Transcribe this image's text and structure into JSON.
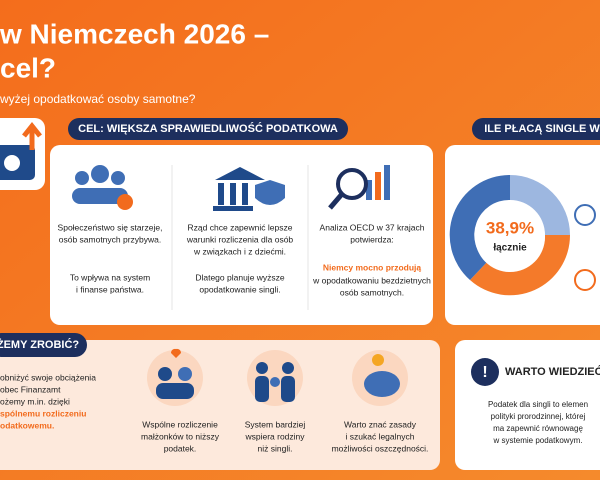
{
  "header": {
    "title_lines": [
      "w Niemczech 2026 –",
      "cel?"
    ],
    "subtitle": "wyżej opodatkować osoby samotne?"
  },
  "goal": {
    "banner": "CEL: WIĘKSZA SPRAWIEDLIWOŚĆ PODATKOWA",
    "columns": [
      {
        "main": [
          "Społeczeństwo się starzeje,",
          "osób samotnych przybywa."
        ],
        "note": [
          "To wpływa na system",
          "i finanse państwa."
        ]
      },
      {
        "main": [
          "Rząd chce zapewnić lepsze",
          "warunki rozliczenia dla osób",
          "w związkach i z dziećmi."
        ],
        "note": [
          "Dlatego planuje wyższe",
          "opodatkowanie singli."
        ]
      },
      {
        "main": [
          "Analiza OECD w 37 krajach",
          "potwierdza:"
        ],
        "highlight": "Niemcy mocno przodują",
        "note": [
          "w opodatkowaniu bezdzietnych",
          "osób samotnych."
        ]
      }
    ]
  },
  "singles": {
    "banner": "ILE PŁACĄ SINGLE W",
    "value": "38,9%",
    "caption": "łącznie"
  },
  "actions": {
    "banner": "ŻEMY ZROBIĆ?",
    "intro": [
      "obniżyć swoje obciążenia",
      "obec Finanzamt",
      "ożemy m.in. dzięki"
    ],
    "intro_highlight": [
      "spólnemu rozliczeniu",
      "odatkowemu."
    ],
    "items": [
      [
        "Wspólne rozliczenie",
        "małżonków to niższy",
        "podatek."
      ],
      [
        "System bardziej",
        "wspiera rodziny",
        "niż singli."
      ],
      [
        "Warto znać zasady",
        "i szukać legalnych",
        "możliwości oszczędności."
      ]
    ]
  },
  "info": {
    "title": "WARTO WIEDZIEĆ",
    "lines": [
      "Podatek dla singli to elemen",
      "polityki prorodzinnej, której",
      "ma zapewnić równowagę",
      "w systemie podatkowym."
    ]
  }
}
